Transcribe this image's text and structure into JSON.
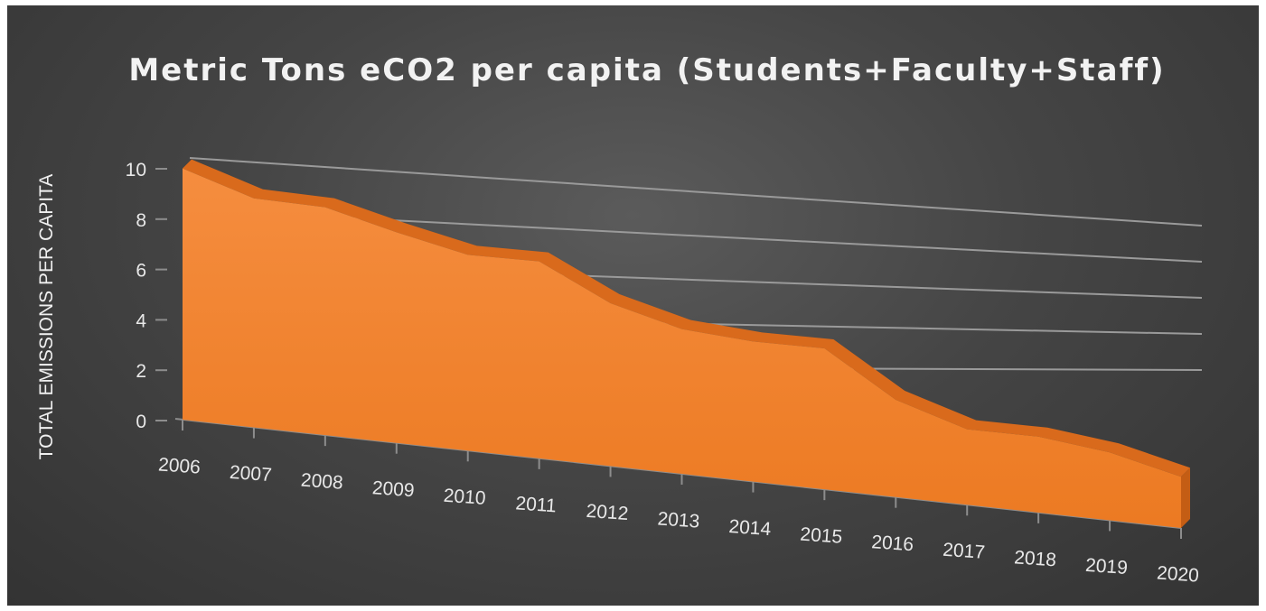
{
  "chart_data": {
    "type": "area",
    "title": "Metric Tons eCO2 per capita (Students+Faculty+Staff)",
    "ylabel": "TOTAL EMISSIONS PER CAPITA",
    "xlabel": "",
    "x": [
      "2006",
      "2007",
      "2008",
      "2009",
      "2010",
      "2011",
      "2012",
      "2013",
      "2014",
      "2015",
      "2016",
      "2017",
      "2018",
      "2019",
      "2020"
    ],
    "series": [
      {
        "values": [
          9.6,
          8.7,
          8.6,
          7.9,
          7.3,
          7.3,
          6.0,
          5.3,
          5.1,
          5.1,
          3.5,
          2.7,
          2.7,
          2.4,
          1.8
        ]
      }
    ],
    "yticks": [
      "0",
      "2",
      "4",
      "6",
      "8",
      "10"
    ],
    "ylim": [
      0,
      10
    ],
    "grid": true,
    "legend": "none",
    "style": "3d",
    "colors": {
      "area": "#f07f2a",
      "area_top": "#d96a1c",
      "grid": "#9a9a9a",
      "background": "#444444",
      "text": "#e8e8e8"
    }
  }
}
